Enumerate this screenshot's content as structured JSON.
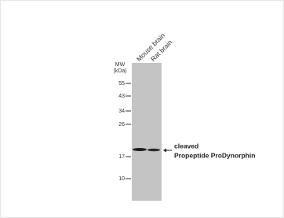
{
  "lanes": [
    "Mouse brain",
    "Rat brain"
  ],
  "mw_label": "MW",
  "mw_unit": "(kDa)",
  "markers": [
    55,
    43,
    34,
    26,
    17,
    10
  ],
  "annotation": [
    "cleaved",
    "Propeptide ProDynorphin"
  ]
}
